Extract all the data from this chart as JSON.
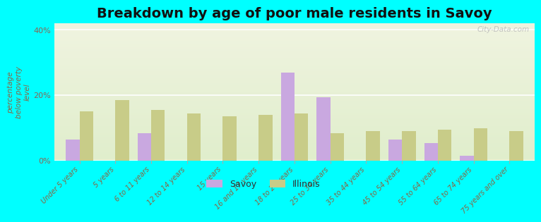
{
  "title": "Breakdown by age of poor male residents in Savoy",
  "ylabel": "percentage\nbelow poverty\nlevel",
  "categories": [
    "Under 5 years",
    "5 years",
    "6 to 11 years",
    "12 to 14 years",
    "15 years",
    "16 and 17 years",
    "18 to 24 years",
    "25 to 34 years",
    "35 to 44 years",
    "45 to 54 years",
    "55 to 64 years",
    "65 to 74 years",
    "75 years and over"
  ],
  "savoy_values": [
    6.5,
    0,
    8.5,
    0,
    0,
    0,
    27.0,
    19.5,
    0,
    6.5,
    5.5,
    1.5,
    0
  ],
  "illinois_values": [
    15.0,
    18.5,
    15.5,
    14.5,
    13.5,
    14.0,
    14.5,
    8.5,
    9.0,
    9.0,
    9.5,
    10.0,
    9.0
  ],
  "savoy_color": "#c9a8e0",
  "illinois_color": "#c8cc88",
  "ylim": [
    0,
    42
  ],
  "ytick_labels": [
    "0%",
    "20%",
    "40%"
  ],
  "ytick_vals": [
    0,
    20,
    40
  ],
  "title_fontsize": 14,
  "outer_bg_color": "#00ffff",
  "bar_width": 0.38,
  "legend_savoy": "Savoy",
  "legend_illinois": "Illinois",
  "watermark": "City-Data.com"
}
